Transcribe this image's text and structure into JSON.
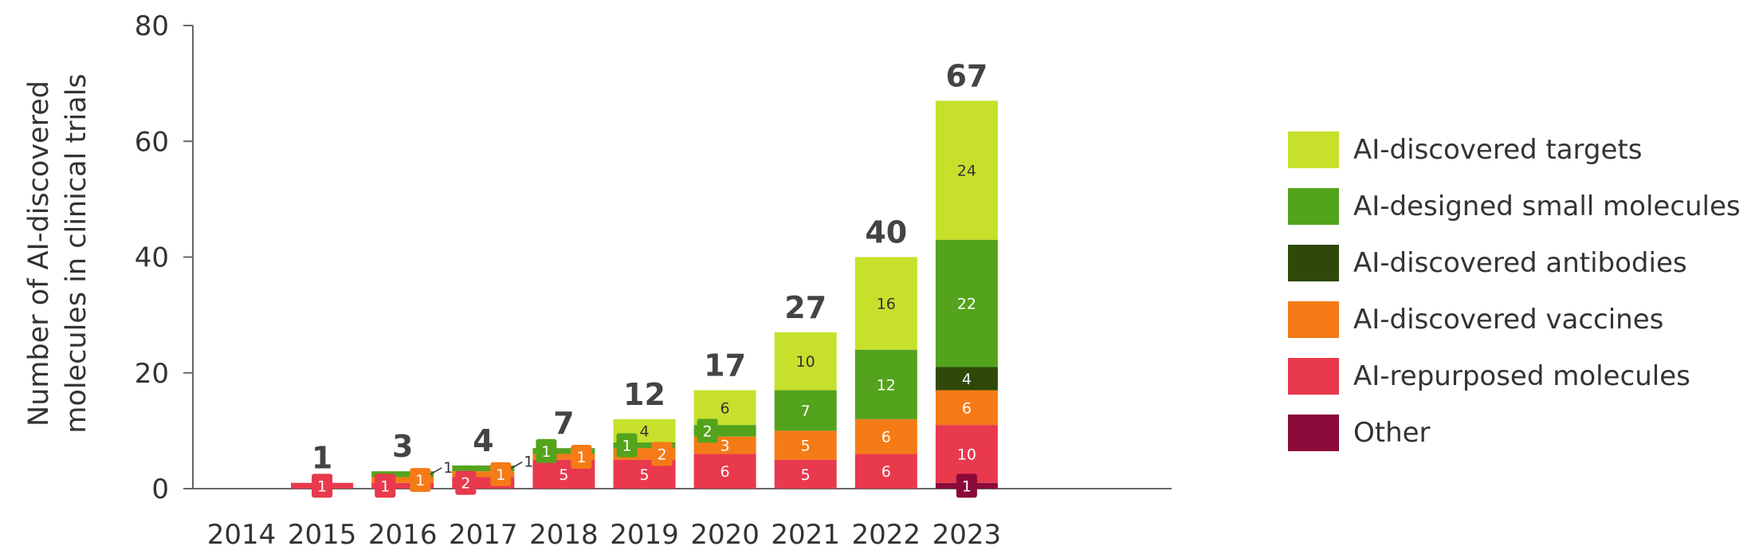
{
  "chart_data": {
    "type": "bar",
    "stacked": true,
    "categories": [
      "2014",
      "2015",
      "2016",
      "2017",
      "2018",
      "2019",
      "2020",
      "2021",
      "2022",
      "2023"
    ],
    "ylabel_lines": [
      "Number of AI-discovered",
      "molecules in clinical trials"
    ],
    "ylim": [
      0,
      80
    ],
    "yticks": [
      0,
      20,
      40,
      60,
      80
    ],
    "grid": false,
    "legend_position": "right",
    "totals": [
      null,
      1,
      3,
      4,
      7,
      12,
      17,
      27,
      40,
      67
    ],
    "series": [
      {
        "name": "Other",
        "color": "#8b0a3a",
        "values": [
          0,
          0,
          0,
          0,
          0,
          0,
          0,
          0,
          0,
          1
        ]
      },
      {
        "name": "AI-repurposed molecules",
        "color": "#e8394d",
        "values": [
          0,
          1,
          1,
          2,
          5,
          5,
          6,
          5,
          6,
          10
        ]
      },
      {
        "name": "AI-discovered vaccines",
        "color": "#f57b16",
        "values": [
          0,
          0,
          1,
          1,
          1,
          2,
          3,
          5,
          6,
          6
        ]
      },
      {
        "name": "AI-discovered antibodies",
        "color": "#2f4a08",
        "values": [
          0,
          0,
          0,
          0,
          0,
          0,
          0,
          0,
          0,
          4
        ]
      },
      {
        "name": "AI-designed small molecules",
        "color": "#54a31c",
        "values": [
          0,
          0,
          1,
          1,
          1,
          1,
          2,
          7,
          12,
          22
        ]
      },
      {
        "name": "AI-discovered targets",
        "color": "#c7e02c",
        "values": [
          0,
          0,
          0,
          0,
          0,
          4,
          6,
          10,
          16,
          24
        ]
      }
    ],
    "segment_labels": [
      {
        "cat": 1,
        "series": 1,
        "text": "1",
        "style": "badge"
      },
      {
        "cat": 2,
        "series": 1,
        "text": "1",
        "style": "badge"
      },
      {
        "cat": 2,
        "series": 2,
        "text": "1",
        "style": "badge"
      },
      {
        "cat": 2,
        "series": 4,
        "text": "1",
        "style": "callout"
      },
      {
        "cat": 3,
        "series": 1,
        "text": "2",
        "style": "badge"
      },
      {
        "cat": 3,
        "series": 2,
        "text": "1",
        "style": "badge"
      },
      {
        "cat": 3,
        "series": 4,
        "text": "1",
        "style": "callout"
      },
      {
        "cat": 4,
        "series": 1,
        "text": "5",
        "style": "inside"
      },
      {
        "cat": 4,
        "series": 2,
        "text": "1",
        "style": "badge"
      },
      {
        "cat": 4,
        "series": 4,
        "text": "1",
        "style": "badge"
      },
      {
        "cat": 5,
        "series": 1,
        "text": "5",
        "style": "inside"
      },
      {
        "cat": 5,
        "series": 2,
        "text": "2",
        "style": "badge"
      },
      {
        "cat": 5,
        "series": 4,
        "text": "1",
        "style": "badge"
      },
      {
        "cat": 5,
        "series": 5,
        "text": "4",
        "style": "inside"
      },
      {
        "cat": 6,
        "series": 1,
        "text": "6",
        "style": "inside"
      },
      {
        "cat": 6,
        "series": 2,
        "text": "3",
        "style": "inside"
      },
      {
        "cat": 6,
        "series": 4,
        "text": "2",
        "style": "badge"
      },
      {
        "cat": 6,
        "series": 5,
        "text": "6",
        "style": "inside"
      },
      {
        "cat": 7,
        "series": 1,
        "text": "5",
        "style": "inside"
      },
      {
        "cat": 7,
        "series": 2,
        "text": "5",
        "style": "inside"
      },
      {
        "cat": 7,
        "series": 4,
        "text": "7",
        "style": "inside"
      },
      {
        "cat": 7,
        "series": 5,
        "text": "10",
        "style": "inside"
      },
      {
        "cat": 8,
        "series": 1,
        "text": "6",
        "style": "inside"
      },
      {
        "cat": 8,
        "series": 2,
        "text": "6",
        "style": "inside"
      },
      {
        "cat": 8,
        "series": 4,
        "text": "12",
        "style": "inside"
      },
      {
        "cat": 8,
        "series": 5,
        "text": "16",
        "style": "inside"
      },
      {
        "cat": 9,
        "series": 0,
        "text": "1",
        "style": "badge"
      },
      {
        "cat": 9,
        "series": 1,
        "text": "10",
        "style": "inside"
      },
      {
        "cat": 9,
        "series": 2,
        "text": "6",
        "style": "inside"
      },
      {
        "cat": 9,
        "series": 3,
        "text": "4",
        "style": "inside"
      },
      {
        "cat": 9,
        "series": 4,
        "text": "22",
        "style": "inside"
      },
      {
        "cat": 9,
        "series": 5,
        "text": "24",
        "style": "inside"
      }
    ],
    "legend_order": [
      5,
      4,
      3,
      2,
      1,
      0
    ],
    "colors": {
      "axis": "#666666",
      "text": "#333333",
      "total_label": "#444444"
    }
  }
}
